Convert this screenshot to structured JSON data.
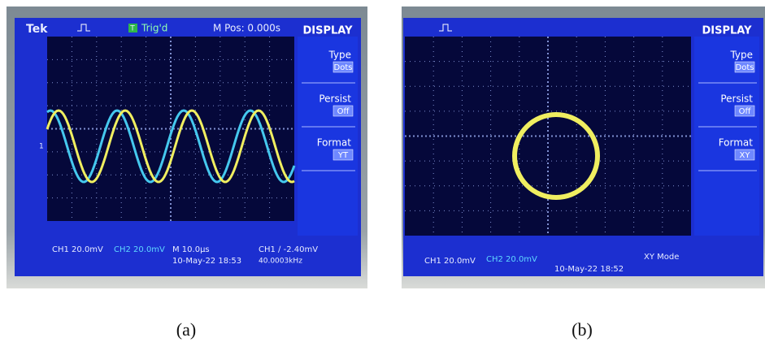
{
  "panels": [
    {
      "label": "(a)",
      "header": {
        "brand": "Tek",
        "trigger_icon": "T",
        "trigger": "Trig'd",
        "position": "M Pos: 0.000s"
      },
      "channel_marker": "1",
      "menu": {
        "title": "DISPLAY",
        "items": [
          {
            "label": "Type",
            "value": "Dots"
          },
          {
            "label": "Persist",
            "value": "Off"
          },
          {
            "label": "Format",
            "value": "YT"
          }
        ]
      },
      "footer": {
        "ch1": "CH1  20.0mV",
        "ch2": "CH2  20.0mV",
        "timebase": "M 10.0µs",
        "trigger_level": "CH1 ∕ -2.40mV",
        "date": "10-May-22 18:53",
        "frequency": "40.0003kHz"
      }
    },
    {
      "label": "(b)",
      "menu": {
        "title": "DISPLAY",
        "items": [
          {
            "label": "Type",
            "value": "Dots"
          },
          {
            "label": "Persist",
            "value": "Off"
          },
          {
            "label": "Format",
            "value": "XY"
          }
        ]
      },
      "footer": {
        "ch1": "CH1  20.0mV",
        "ch2": "CH2  20.0mV",
        "date": "10-May-22 18:52",
        "mode": "XY Mode"
      }
    }
  ]
}
